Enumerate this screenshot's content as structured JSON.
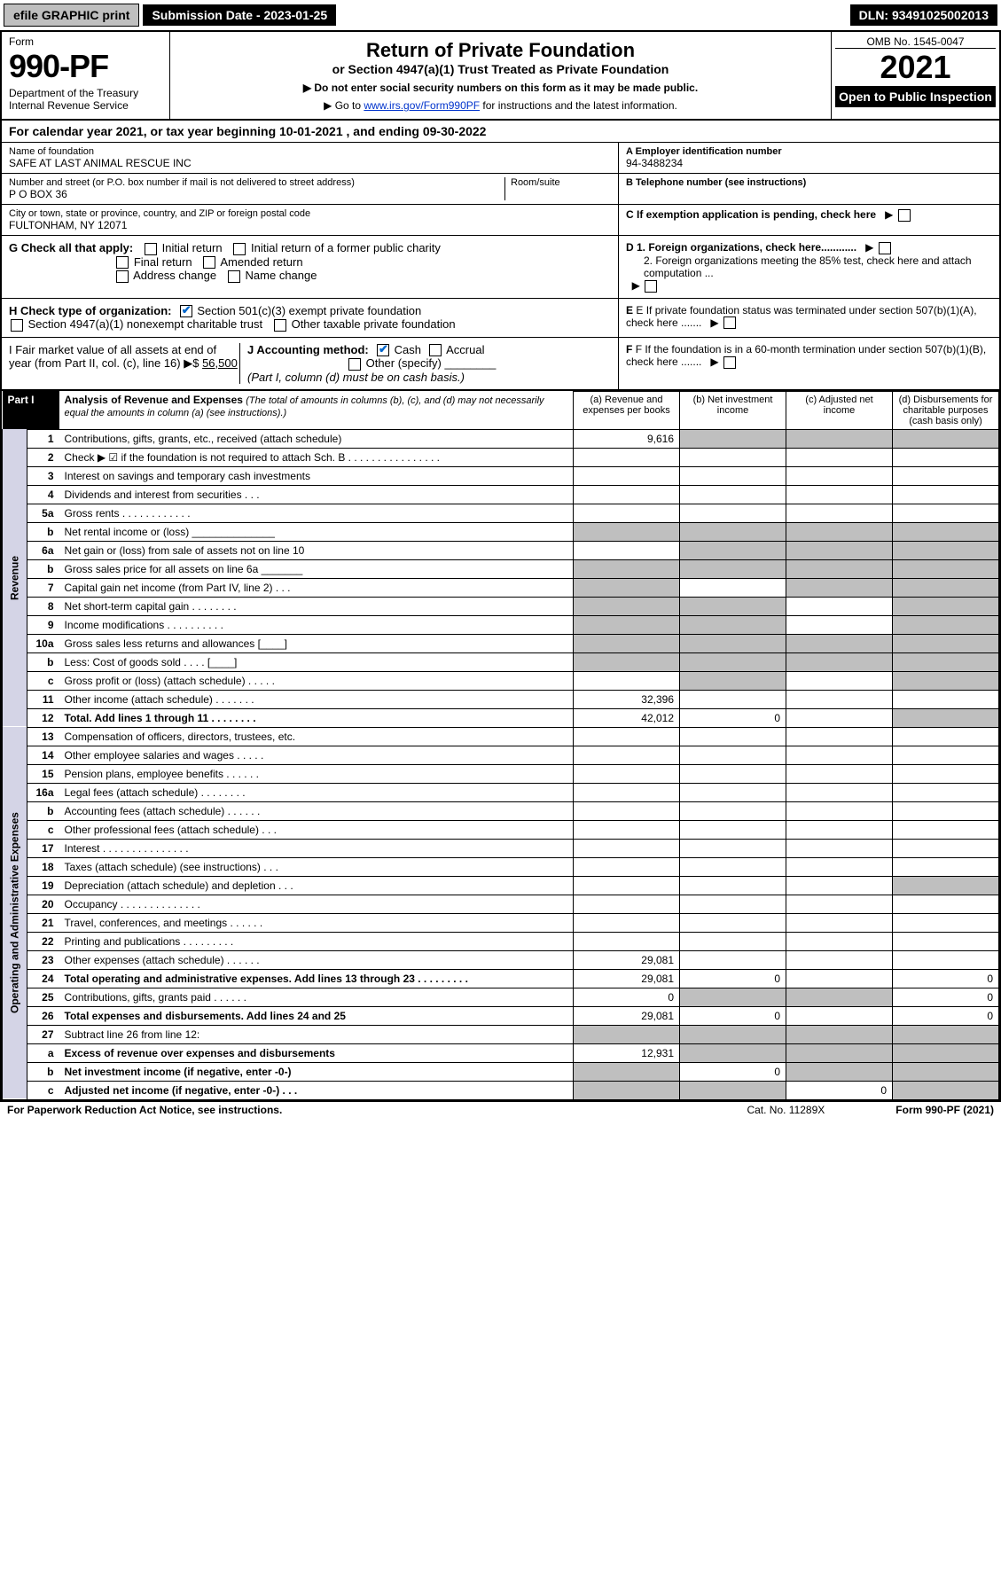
{
  "topbar": {
    "efile": "efile GRAPHIC print",
    "subdate": "Submission Date - 2023-01-25",
    "dln": "DLN: 93491025002013"
  },
  "header": {
    "form": "Form",
    "formNo": "990-PF",
    "dept": "Department of the Treasury\nInternal Revenue Service",
    "title": "Return of Private Foundation",
    "subtitle": "or Section 4947(a)(1) Trust Treated as Private Foundation",
    "note1": "▶ Do not enter social security numbers on this form as it may be made public.",
    "note2": "▶ Go to ",
    "link": "www.irs.gov/Form990PF",
    "note3": " for instructions and the latest information.",
    "omb": "OMB No. 1545-0047",
    "year": "2021",
    "open": "Open to Public Inspection"
  },
  "cal": "For calendar year 2021, or tax year beginning 10-01-2021            , and ending 09-30-2022",
  "entity": {
    "nameLbl": "Name of foundation",
    "name": "SAFE AT LAST ANIMAL RESCUE INC",
    "addrLbl": "Number and street (or P.O. box number if mail is not delivered to street address)",
    "addr": "P O BOX 36",
    "roomLbl": "Room/suite",
    "cityLbl": "City or town, state or province, country, and ZIP or foreign postal code",
    "city": "FULTONHAM, NY  12071",
    "einLbl": "A Employer identification number",
    "ein": "94-3488234",
    "telLbl": "B Telephone number (see instructions)",
    "cLbl": "C If exemption application is pending, check here",
    "gLbl": "G Check all that apply:",
    "g1": "Initial return",
    "g2": "Initial return of a former public charity",
    "g3": "Final return",
    "g4": "Amended return",
    "g5": "Address change",
    "g6": "Name change",
    "d1": "D 1. Foreign organizations, check here............",
    "d2": "2. Foreign organizations meeting the 85% test, check here and attach computation ...",
    "hLbl": "H Check type of organization:",
    "h1": "Section 501(c)(3) exempt private foundation",
    "h2": "Section 4947(a)(1) nonexempt charitable trust",
    "h3": "Other taxable private foundation",
    "eLbl": "E  If private foundation status was terminated under section 507(b)(1)(A), check here .......",
    "iLbl": "I Fair market value of all assets at end of year (from Part II, col. (c), line 16) ▶$",
    "iVal": "56,500",
    "jLbl": "J Accounting method:",
    "j1": "Cash",
    "j2": "Accrual",
    "j3": "Other (specify)",
    "jNote": "(Part I, column (d) must be on cash basis.)",
    "fLbl": "F  If the foundation is in a 60-month termination under section 507(b)(1)(B), check here ......."
  },
  "part1": {
    "tag": "Part I",
    "title": "Analysis of Revenue and Expenses",
    "titleNote": "(The total of amounts in columns (b), (c), and (d) may not necessarily equal the amounts in column (a) (see instructions).)",
    "colA": "(a) Revenue and expenses per books",
    "colB": "(b) Net investment income",
    "colC": "(c) Adjusted net income",
    "colD": "(d) Disbursements for charitable purposes (cash basis only)",
    "sideRev": "Revenue",
    "sideExp": "Operating and Administrative Expenses"
  },
  "rows": [
    {
      "n": "1",
      "d": "Contributions, gifts, grants, etc., received (attach schedule)",
      "a": "9,616",
      "gb": 1,
      "gc": 1,
      "gd": 1
    },
    {
      "n": "2",
      "d": "Check ▶ ☑ if the foundation is not required to attach Sch. B   .  .  .  .  .  .  .  .  .  .  .  .  .  .  .  ."
    },
    {
      "n": "3",
      "d": "Interest on savings and temporary cash investments"
    },
    {
      "n": "4",
      "d": "Dividends and interest from securities    .  .  ."
    },
    {
      "n": "5a",
      "d": "Gross rents   .  .  .  .  .  .  .  .  .  .  .  ."
    },
    {
      "n": "b",
      "d": "Net rental income or (loss)  ______________",
      "ga": 1,
      "gb": 1,
      "gc": 1,
      "gd": 1
    },
    {
      "n": "6a",
      "d": "Net gain or (loss) from sale of assets not on line 10",
      "gb": 1,
      "gc": 1,
      "gd": 1
    },
    {
      "n": "b",
      "d": "Gross sales price for all assets on line 6a _______",
      "ga": 1,
      "gb": 1,
      "gc": 1,
      "gd": 1
    },
    {
      "n": "7",
      "d": "Capital gain net income (from Part IV, line 2)   .  .  .",
      "ga": 1,
      "gc": 1,
      "gd": 1
    },
    {
      "n": "8",
      "d": "Net short-term capital gain  .  .  .  .  .  .  .  .",
      "ga": 1,
      "gb": 1,
      "gd": 1
    },
    {
      "n": "9",
      "d": "Income modifications  .  .  .  .  .  .  .  .  .  .",
      "ga": 1,
      "gb": 1,
      "gd": 1
    },
    {
      "n": "10a",
      "d": "Gross sales less returns and allowances  [____]",
      "ga": 1,
      "gb": 1,
      "gc": 1,
      "gd": 1
    },
    {
      "n": "b",
      "d": "Less: Cost of goods sold   .  .  .  .  [____]",
      "ga": 1,
      "gb": 1,
      "gc": 1,
      "gd": 1
    },
    {
      "n": "c",
      "d": "Gross profit or (loss) (attach schedule)   .  .  .  .  .",
      "gb": 1,
      "gd": 1
    },
    {
      "n": "11",
      "d": "Other income (attach schedule)   .  .  .  .  .  .  .",
      "a": "32,396"
    },
    {
      "n": "12",
      "d": "Total. Add lines 1 through 11   .  .  .  .  .  .  .  .",
      "a": "42,012",
      "b": "0",
      "bold": 1,
      "gd": 1
    },
    {
      "n": "13",
      "d": "Compensation of officers, directors, trustees, etc."
    },
    {
      "n": "14",
      "d": "Other employee salaries and wages   .  .  .  .  ."
    },
    {
      "n": "15",
      "d": "Pension plans, employee benefits  .  .  .  .  .  ."
    },
    {
      "n": "16a",
      "d": "Legal fees (attach schedule)  .  .  .  .  .  .  .  ."
    },
    {
      "n": "b",
      "d": "Accounting fees (attach schedule)  .  .  .  .  .  ."
    },
    {
      "n": "c",
      "d": "Other professional fees (attach schedule)   .  .  ."
    },
    {
      "n": "17",
      "d": "Interest  .  .  .  .  .  .  .  .  .  .  .  .  .  .  ."
    },
    {
      "n": "18",
      "d": "Taxes (attach schedule) (see instructions)   .  .  ."
    },
    {
      "n": "19",
      "d": "Depreciation (attach schedule) and depletion   .  .  .",
      "gd": 1
    },
    {
      "n": "20",
      "d": "Occupancy  .  .  .  .  .  .  .  .  .  .  .  .  .  ."
    },
    {
      "n": "21",
      "d": "Travel, conferences, and meetings  .  .  .  .  .  ."
    },
    {
      "n": "22",
      "d": "Printing and publications  .  .  .  .  .  .  .  .  ."
    },
    {
      "n": "23",
      "d": "Other expenses (attach schedule)  .  .  .  .  .  .",
      "a": "29,081"
    },
    {
      "n": "24",
      "d": "Total operating and administrative expenses. Add lines 13 through 23   .  .  .  .  .  .  .  .  .",
      "a": "29,081",
      "b": "0",
      "d4": "0",
      "bold": 1
    },
    {
      "n": "25",
      "d": "Contributions, gifts, grants paid   .  .  .  .  .  .",
      "a": "0",
      "gb": 1,
      "gc": 1,
      "d4": "0"
    },
    {
      "n": "26",
      "d": "Total expenses and disbursements. Add lines 24 and 25",
      "a": "29,081",
      "b": "0",
      "d4": "0",
      "bold": 1
    },
    {
      "n": "27",
      "d": "Subtract line 26 from line 12:",
      "ga": 1,
      "gb": 1,
      "gc": 1,
      "gd": 1
    },
    {
      "n": "a",
      "d": "Excess of revenue over expenses and disbursements",
      "a": "12,931",
      "gb": 1,
      "gc": 1,
      "gd": 1,
      "bold": 1
    },
    {
      "n": "b",
      "d": "Net investment income (if negative, enter -0-)",
      "ga": 1,
      "b": "0",
      "gc": 1,
      "gd": 1,
      "bold": 1
    },
    {
      "n": "c",
      "d": "Adjusted net income (if negative, enter -0-)   .  .  .",
      "ga": 1,
      "gb": 1,
      "c": "0",
      "gd": 1,
      "bold": 1
    }
  ],
  "footer": {
    "l": "For Paperwork Reduction Act Notice, see instructions.",
    "m": "Cat. No. 11289X",
    "r": "Form 990-PF (2021)"
  }
}
